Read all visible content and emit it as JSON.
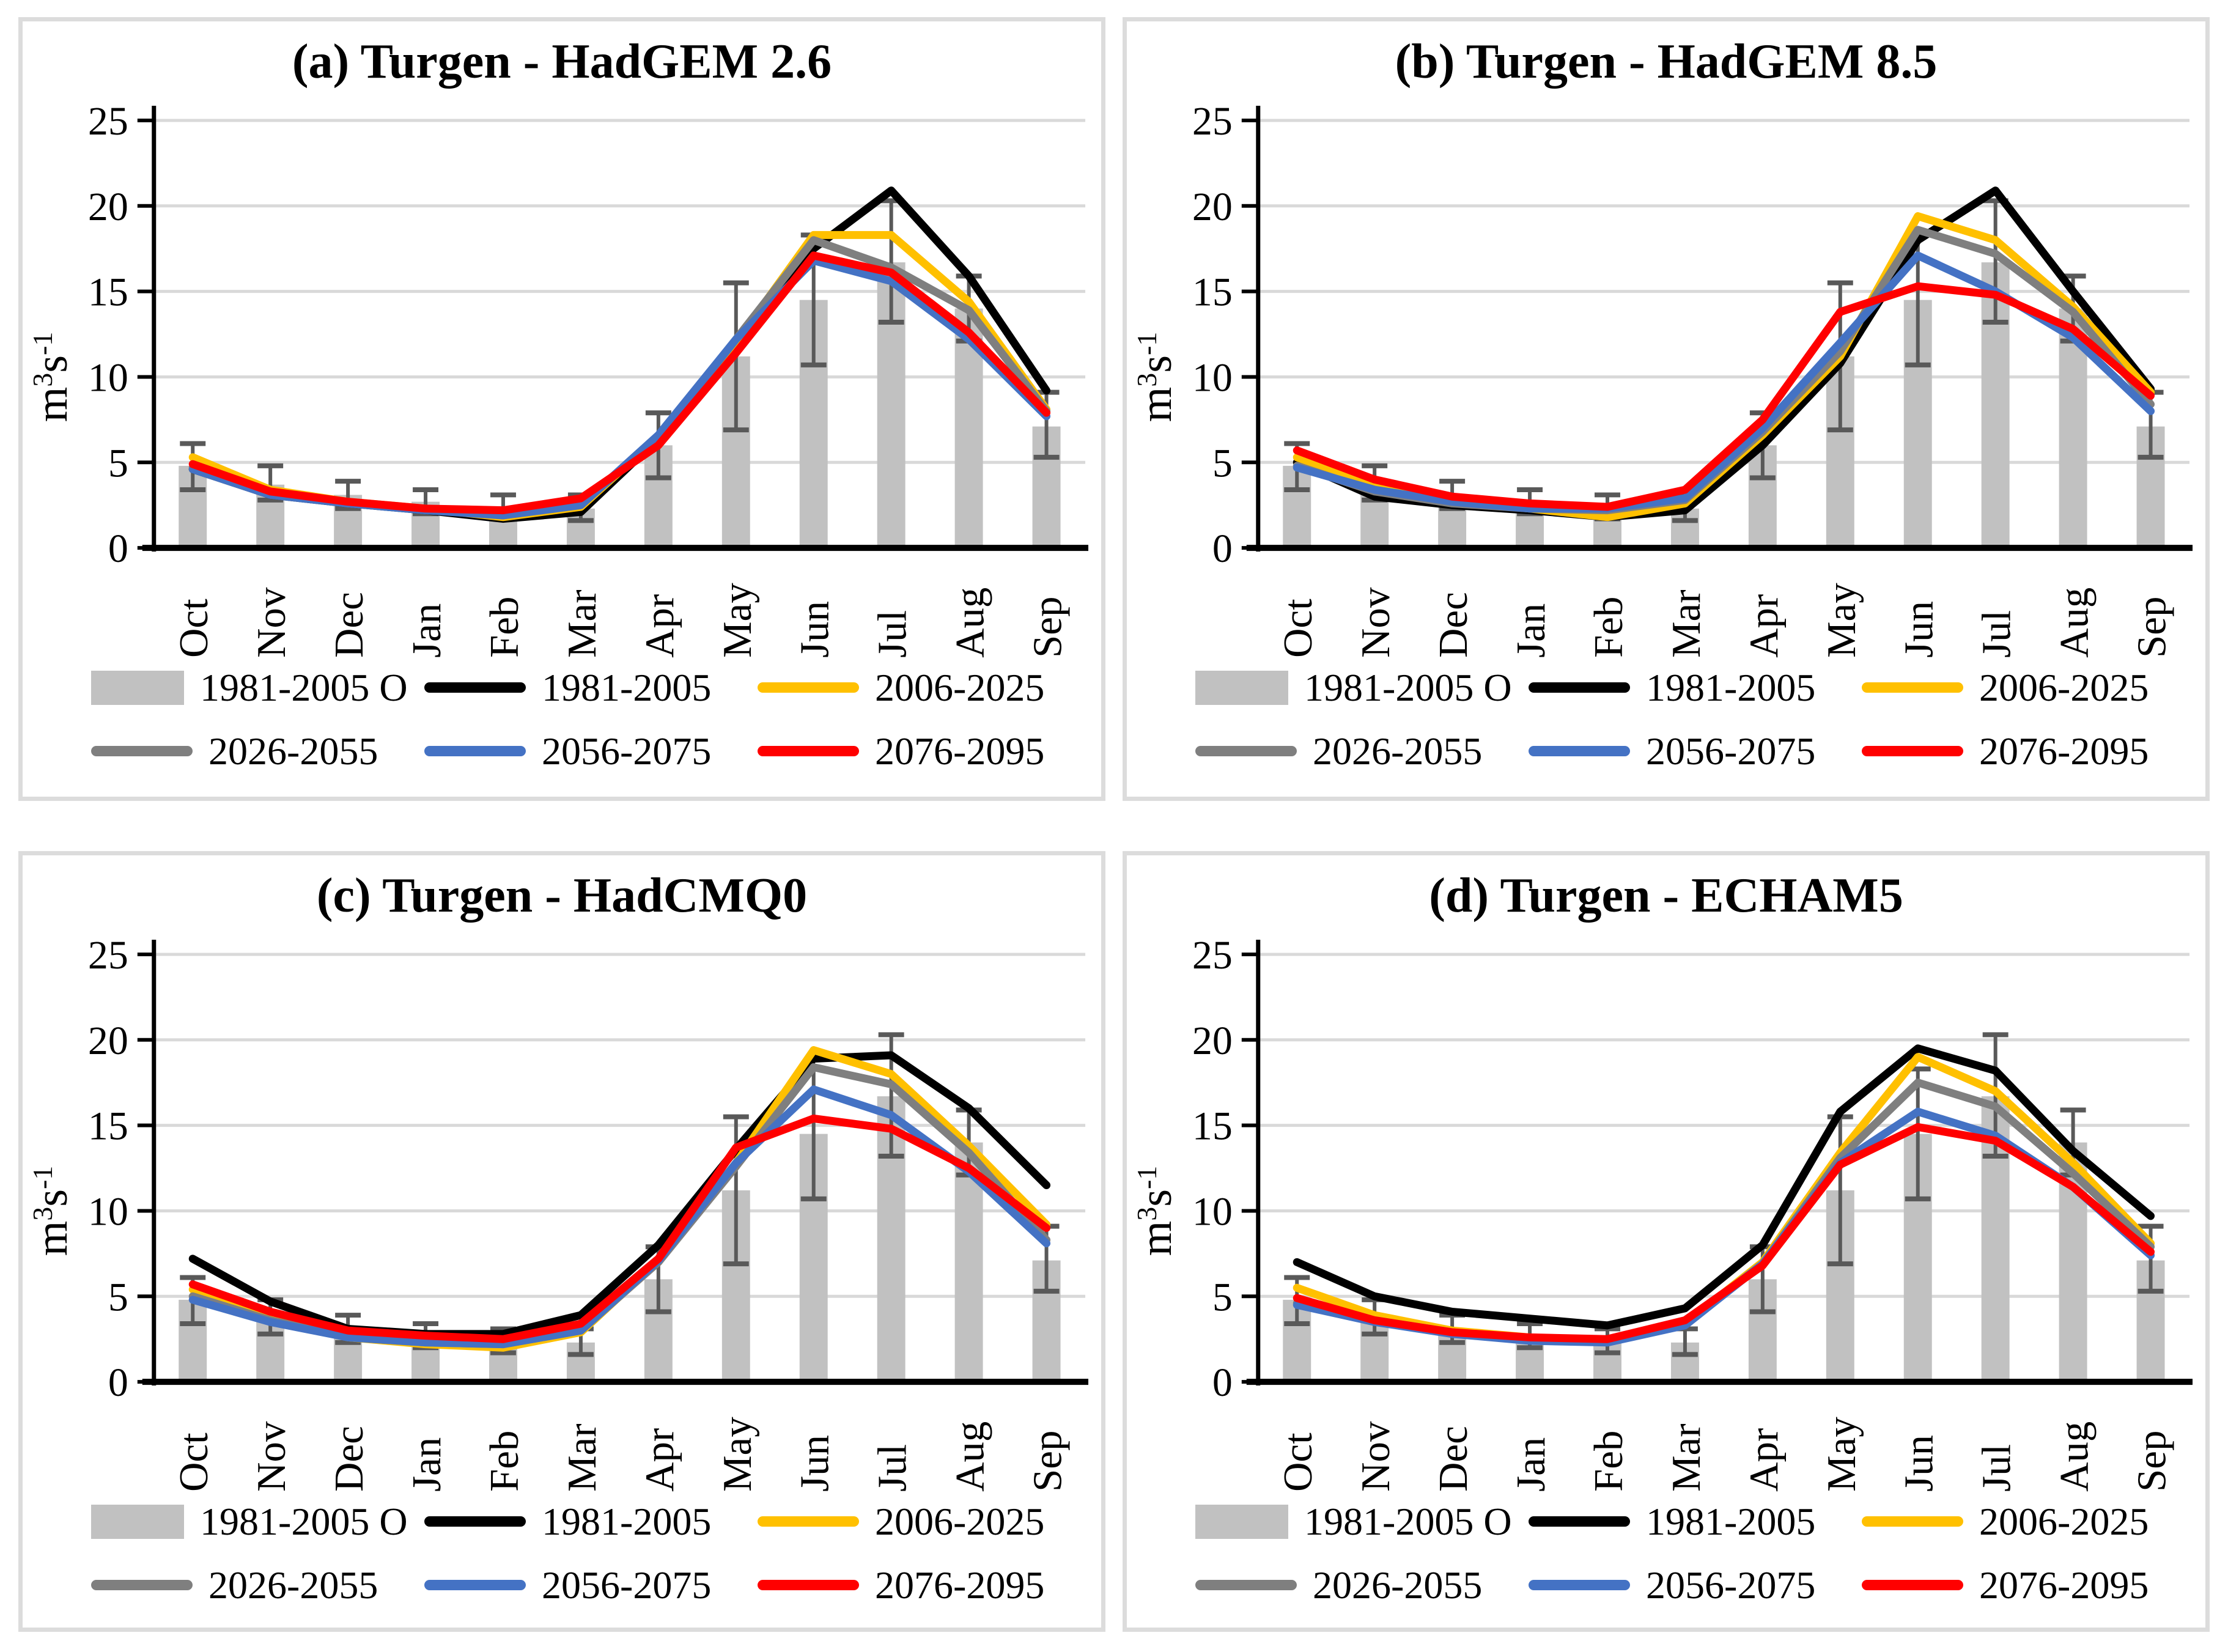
{
  "legend": {
    "items": [
      {
        "label": "1981-2005 O",
        "swatch": "bar",
        "color": "#c1c1c1"
      },
      {
        "label": "1981-2005",
        "swatch": "line",
        "color": "#000000"
      },
      {
        "label": "2006-2025",
        "swatch": "line",
        "color": "#ffc000"
      },
      {
        "label": "2026-2055",
        "swatch": "line",
        "color": "#7f7f7f"
      },
      {
        "label": "2056-2075",
        "swatch": "line",
        "color": "#4472c4"
      },
      {
        "label": "2076-2095",
        "swatch": "line",
        "color": "#ff0000"
      }
    ]
  },
  "ui_colors": {
    "gridline": "#d9d9d9",
    "panel_border": "#dcdcdc",
    "bar": "#c1c1c1",
    "error_bar": "#595959",
    "axis": "#000000"
  },
  "chart_data": [
    {
      "id": "a",
      "type": "line",
      "title": "(a) Turgen - HadGEM 2.6",
      "categories": [
        "Oct",
        "Nov",
        "Dec",
        "Jan",
        "Feb",
        "Mar",
        "Apr",
        "May",
        "Jun",
        "Jul",
        "Aug",
        "Sep"
      ],
      "ylabel": "m³s⁻¹",
      "ylabel_parts": [
        {
          "t": "m",
          "sup": false
        },
        {
          "t": "3",
          "sup": true
        },
        {
          "t": "s",
          "sup": false
        },
        {
          "t": "-1",
          "sup": true
        }
      ],
      "ylim": [
        0,
        25
      ],
      "yticks": [
        0,
        5,
        10,
        15,
        20,
        25
      ],
      "grid": true,
      "legend_position": "bottom",
      "bar_series": {
        "name": "1981-2005 O",
        "color": "#c1c1c1",
        "values": [
          4.8,
          3.7,
          3.1,
          2.7,
          2.4,
          2.3,
          6.0,
          11.2,
          14.5,
          16.7,
          14.0,
          7.1
        ],
        "err_low": [
          3.4,
          2.8,
          2.3,
          2.0,
          1.7,
          1.6,
          4.1,
          6.9,
          10.7,
          13.2,
          12.1,
          5.3
        ],
        "err_high": [
          6.1,
          4.8,
          3.9,
          3.4,
          3.1,
          3.1,
          7.9,
          15.5,
          18.3,
          20.3,
          15.9,
          9.1
        ]
      },
      "series": [
        {
          "name": "1981-2005",
          "color": "#000000",
          "values": [
            4.6,
            3.1,
            2.6,
            2.2,
            1.7,
            2.1,
            6.4,
            11.9,
            17.5,
            20.9,
            15.9,
            9.2
          ]
        },
        {
          "name": "2006-2025",
          "color": "#ffc000",
          "values": [
            5.3,
            3.4,
            2.7,
            2.3,
            1.8,
            2.4,
            6.5,
            12.0,
            18.3,
            18.3,
            14.4,
            8.1
          ]
        },
        {
          "name": "2026-2055",
          "color": "#7f7f7f",
          "values": [
            4.7,
            3.2,
            2.6,
            2.3,
            1.9,
            2.5,
            6.5,
            12.2,
            18.0,
            16.4,
            13.9,
            8.0
          ]
        },
        {
          "name": "2056-2075",
          "color": "#4472c4",
          "values": [
            4.6,
            3.1,
            2.6,
            2.2,
            1.9,
            2.5,
            6.6,
            12.2,
            16.8,
            15.6,
            12.2,
            7.7
          ]
        },
        {
          "name": "2076-2095",
          "color": "#ff0000",
          "values": [
            4.9,
            3.3,
            2.7,
            2.3,
            2.2,
            2.9,
            6.0,
            11.4,
            17.1,
            16.1,
            12.6,
            7.9
          ]
        }
      ]
    },
    {
      "id": "b",
      "type": "line",
      "title": "(b) Turgen - HadGEM 8.5",
      "categories": [
        "Oct",
        "Nov",
        "Dec",
        "Jan",
        "Feb",
        "Mar",
        "Apr",
        "May",
        "Jun",
        "Jul",
        "Aug",
        "Sep"
      ],
      "ylabel": "m³s⁻¹",
      "ylabel_parts": [
        {
          "t": "m",
          "sup": false
        },
        {
          "t": "3",
          "sup": true
        },
        {
          "t": "s",
          "sup": false
        },
        {
          "t": "-1",
          "sup": true
        }
      ],
      "ylim": [
        0,
        25
      ],
      "yticks": [
        0,
        5,
        10,
        15,
        20,
        25
      ],
      "grid": true,
      "legend_position": "bottom",
      "bar_series": {
        "name": "1981-2005 O",
        "color": "#c1c1c1",
        "values": [
          4.8,
          3.7,
          3.1,
          2.7,
          2.4,
          2.3,
          6.0,
          11.2,
          14.5,
          16.7,
          14.0,
          7.1
        ],
        "err_low": [
          3.4,
          2.8,
          2.3,
          2.0,
          1.7,
          1.6,
          4.1,
          6.9,
          10.7,
          13.2,
          12.1,
          5.3
        ],
        "err_high": [
          6.1,
          4.8,
          3.9,
          3.4,
          3.1,
          3.1,
          7.9,
          15.5,
          18.3,
          20.3,
          15.9,
          9.1
        ]
      },
      "series": [
        {
          "name": "1981-2005",
          "color": "#000000",
          "values": [
            5.0,
            3.0,
            2.5,
            2.2,
            1.8,
            2.2,
            6.0,
            10.8,
            18.0,
            20.9,
            15.0,
            9.3
          ]
        },
        {
          "name": "2006-2025",
          "color": "#ffc000",
          "values": [
            5.3,
            3.6,
            2.7,
            2.3,
            1.8,
            2.6,
            6.6,
            11.2,
            19.4,
            18.0,
            14.1,
            9.1
          ]
        },
        {
          "name": "2026-2055",
          "color": "#7f7f7f",
          "values": [
            4.8,
            3.3,
            2.6,
            2.3,
            2.2,
            2.8,
            6.8,
            11.5,
            18.6,
            17.2,
            13.8,
            8.4
          ]
        },
        {
          "name": "2056-2075",
          "color": "#4472c4",
          "values": [
            4.7,
            3.4,
            2.7,
            2.3,
            2.3,
            2.9,
            7.0,
            12.0,
            17.1,
            15.0,
            12.3,
            8.0
          ]
        },
        {
          "name": "2076-2095",
          "color": "#ff0000",
          "values": [
            5.7,
            4.0,
            3.0,
            2.6,
            2.4,
            3.4,
            7.5,
            13.8,
            15.3,
            14.8,
            12.8,
            8.9
          ]
        }
      ]
    },
    {
      "id": "c",
      "type": "line",
      "title": "(c) Turgen - HadCMQ0",
      "categories": [
        "Oct",
        "Nov",
        "Dec",
        "Jan",
        "Feb",
        "Mar",
        "Apr",
        "May",
        "Jun",
        "Jul",
        "Aug",
        "Sep"
      ],
      "ylabel": "m³s⁻¹",
      "ylabel_parts": [
        {
          "t": "m",
          "sup": false
        },
        {
          "t": "3",
          "sup": true
        },
        {
          "t": "s",
          "sup": false
        },
        {
          "t": "-1",
          "sup": true
        }
      ],
      "ylim": [
        0,
        25
      ],
      "yticks": [
        0,
        5,
        10,
        15,
        20,
        25
      ],
      "grid": true,
      "legend_position": "bottom",
      "bar_series": {
        "name": "1981-2005 O",
        "color": "#c1c1c1",
        "values": [
          4.8,
          3.7,
          3.1,
          2.7,
          2.4,
          2.3,
          6.0,
          11.2,
          14.5,
          16.7,
          14.0,
          7.1
        ],
        "err_low": [
          3.4,
          2.8,
          2.3,
          2.0,
          1.7,
          1.6,
          4.1,
          6.9,
          10.7,
          13.2,
          12.1,
          5.3
        ],
        "err_high": [
          6.1,
          4.8,
          3.9,
          3.4,
          3.1,
          3.1,
          7.9,
          15.5,
          18.3,
          20.3,
          15.9,
          9.1
        ]
      },
      "series": [
        {
          "name": "1981-2005",
          "color": "#000000",
          "values": [
            7.2,
            4.7,
            3.1,
            2.8,
            2.8,
            3.9,
            8.0,
            13.6,
            18.9,
            19.1,
            16.0,
            11.5
          ]
        },
        {
          "name": "2006-2025",
          "color": "#ffc000",
          "values": [
            5.4,
            3.8,
            2.6,
            2.2,
            2.0,
            2.9,
            7.1,
            12.8,
            19.4,
            18.0,
            13.8,
            9.2
          ]
        },
        {
          "name": "2026-2055",
          "color": "#7f7f7f",
          "values": [
            5.0,
            3.6,
            2.6,
            2.3,
            2.2,
            3.0,
            7.0,
            12.6,
            18.4,
            17.4,
            13.4,
            8.3
          ]
        },
        {
          "name": "2056-2075",
          "color": "#4472c4",
          "values": [
            4.8,
            3.5,
            2.6,
            2.3,
            2.2,
            3.0,
            7.1,
            12.8,
            17.1,
            15.6,
            12.3,
            8.1
          ]
        },
        {
          "name": "2076-2095",
          "color": "#ff0000",
          "values": [
            5.7,
            4.1,
            3.0,
            2.7,
            2.5,
            3.4,
            7.2,
            13.7,
            15.4,
            14.8,
            12.5,
            9.0
          ]
        }
      ]
    },
    {
      "id": "d",
      "type": "line",
      "title": "(d) Turgen - ECHAM5",
      "categories": [
        "Oct",
        "Nov",
        "Dec",
        "Jan",
        "Feb",
        "Mar",
        "Apr",
        "May",
        "Jun",
        "Jul",
        "Aug",
        "Sep"
      ],
      "ylabel": "m³s⁻¹",
      "ylabel_parts": [
        {
          "t": "m",
          "sup": false
        },
        {
          "t": "3",
          "sup": true
        },
        {
          "t": "s",
          "sup": false
        },
        {
          "t": "-1",
          "sup": true
        }
      ],
      "ylim": [
        0,
        25
      ],
      "yticks": [
        0,
        5,
        10,
        15,
        20,
        25
      ],
      "grid": true,
      "legend_position": "bottom",
      "bar_series": {
        "name": "1981-2005 O",
        "color": "#c1c1c1",
        "values": [
          4.8,
          3.7,
          3.1,
          2.7,
          2.4,
          2.3,
          6.0,
          11.2,
          14.5,
          16.7,
          14.0,
          7.1
        ],
        "err_low": [
          3.4,
          2.8,
          2.3,
          2.0,
          1.7,
          1.6,
          4.1,
          6.9,
          10.7,
          13.2,
          12.1,
          5.3
        ],
        "err_high": [
          6.1,
          4.8,
          3.9,
          3.4,
          3.1,
          3.1,
          7.9,
          15.5,
          18.3,
          20.3,
          15.9,
          9.1
        ]
      },
      "series": [
        {
          "name": "1981-2005",
          "color": "#000000",
          "values": [
            7.0,
            5.0,
            4.1,
            3.7,
            3.3,
            4.3,
            8.0,
            15.8,
            19.5,
            18.2,
            13.5,
            9.7
          ]
        },
        {
          "name": "2006-2025",
          "color": "#ffc000",
          "values": [
            5.5,
            3.9,
            3.0,
            2.6,
            2.4,
            3.4,
            7.0,
            13.4,
            19.0,
            17.0,
            12.8,
            8.1
          ]
        },
        {
          "name": "2026-2055",
          "color": "#7f7f7f",
          "values": [
            4.6,
            3.6,
            2.9,
            2.5,
            2.3,
            3.4,
            6.9,
            13.1,
            17.5,
            16.1,
            12.2,
            7.9
          ]
        },
        {
          "name": "2056-2075",
          "color": "#4472c4",
          "values": [
            4.5,
            3.5,
            2.8,
            2.4,
            2.3,
            3.3,
            6.9,
            12.8,
            15.8,
            14.4,
            11.4,
            7.4
          ]
        },
        {
          "name": "2076-2095",
          "color": "#ff0000",
          "values": [
            4.9,
            3.6,
            2.9,
            2.6,
            2.5,
            3.6,
            6.8,
            12.7,
            14.9,
            14.1,
            11.4,
            7.6
          ]
        }
      ]
    }
  ]
}
